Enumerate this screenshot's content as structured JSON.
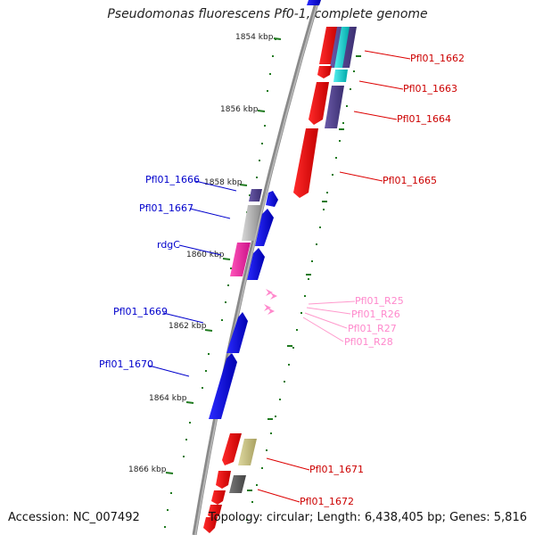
{
  "title": "Pseudomonas fluorescens Pf0-1, complete genome",
  "footer": {
    "accession": "Accession: NC_007492",
    "topology": "Topology: circular; Length: 6,438,405 bp; Genes: 5,816"
  },
  "colors": {
    "backbone": "#888888",
    "tick": "#1f7a1f",
    "forward": "#ff0000",
    "reverse": "#0000ff",
    "rna": "#ff99cc",
    "rna_label": "#ff88cc"
  },
  "scale_labels": [
    "1854 kbp",
    "1856 kbp",
    "1858 kbp",
    "1860 kbp",
    "1862 kbp",
    "1864 kbp",
    "1866 kbp"
  ],
  "gene_labels_right": [
    "Pfl01_1662",
    "Pfl01_1663",
    "Pfl01_1664",
    "Pfl01_1665",
    "Pfl01_1671",
    "Pfl01_1672"
  ],
  "gene_labels_left": [
    "Pfl01_1666",
    "Pfl01_1667",
    "rdgC",
    "Pfl01_1669",
    "Pfl01_1670"
  ],
  "rna_labels": [
    "Pfl01_R25",
    "Pfl01_R26",
    "Pfl01_R27",
    "Pfl01_R28"
  ]
}
